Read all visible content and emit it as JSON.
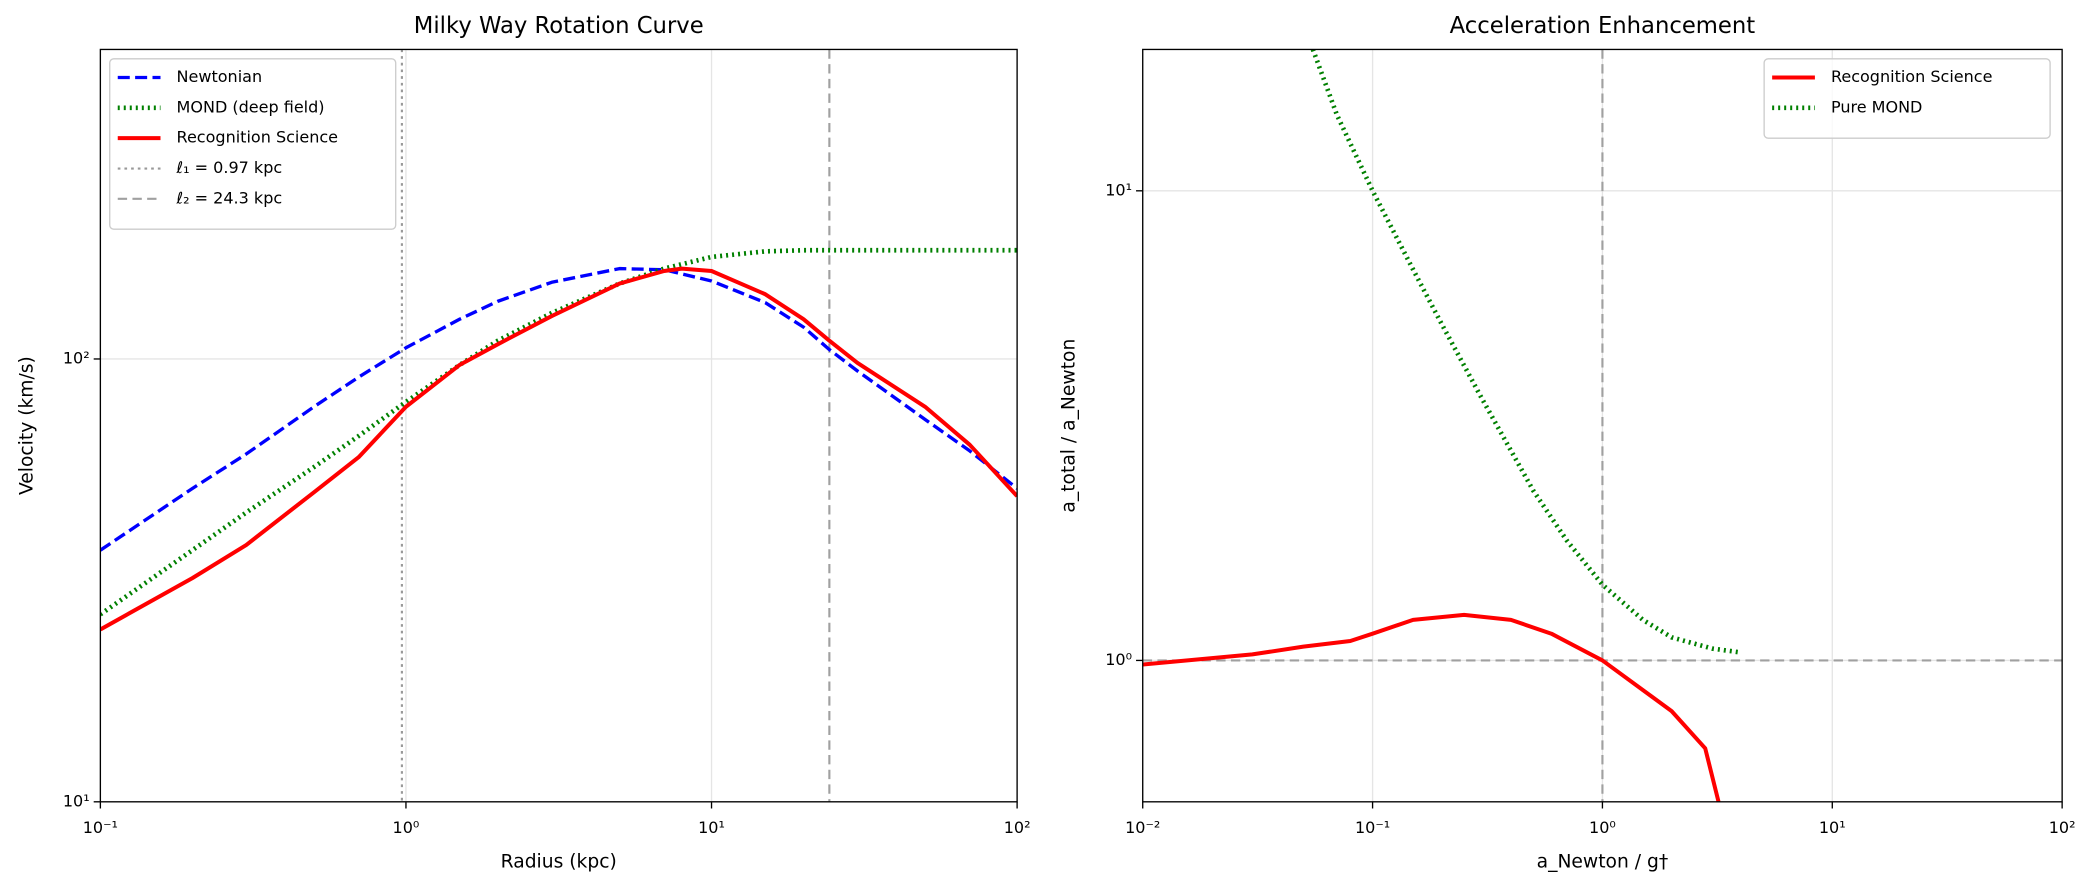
{
  "chart_data": [
    {
      "type": "line",
      "title": "Milky Way Rotation Curve",
      "xlabel": "Radius (kpc)",
      "ylabel": "Velocity (km/s)",
      "xscale": "log",
      "yscale": "log",
      "xlim": [
        0.1,
        100
      ],
      "ylim": [
        10,
        500
      ],
      "xticks": [
        {
          "value": 0.1,
          "label": "10⁻¹"
        },
        {
          "value": 1,
          "label": "10⁰"
        },
        {
          "value": 10,
          "label": "10¹"
        },
        {
          "value": 100,
          "label": "10²"
        }
      ],
      "yticks": [
        {
          "value": 10,
          "label": "10¹"
        },
        {
          "value": 100,
          "label": "10²"
        }
      ],
      "grid": true,
      "legend": "upper left",
      "series": [
        {
          "name": "Newtonian",
          "color": "#0000ff",
          "style": "dashed",
          "x": [
            0.1,
            0.2,
            0.3,
            0.5,
            0.7,
            1,
            1.5,
            2,
            3,
            5,
            7,
            10,
            15,
            20,
            24.3,
            30,
            50,
            70,
            100
          ],
          "values": [
            37,
            51,
            61,
            78,
            91,
            106,
            123,
            135,
            149,
            160,
            159,
            150,
            134,
            118,
            105,
            94,
            73,
            62,
            51
          ]
        },
        {
          "name": "MOND (deep field)",
          "color": "#008000",
          "style": "dotted",
          "x": [
            0.1,
            0.2,
            0.3,
            0.5,
            0.7,
            1,
            1.5,
            2,
            3,
            5,
            7,
            10,
            15,
            20,
            24.3,
            30,
            50,
            70,
            100
          ],
          "values": [
            26.5,
            37,
            45,
            57,
            67,
            80,
            97,
            110,
            127,
            148,
            160,
            170,
            175,
            176,
            176,
            176,
            176,
            176,
            176
          ]
        },
        {
          "name": "Recognition Science",
          "color": "#ff0000",
          "style": "solid",
          "x": [
            0.1,
            0.2,
            0.3,
            0.5,
            0.7,
            1,
            1.5,
            2,
            3,
            5,
            7,
            8,
            10,
            15,
            20,
            24.3,
            30,
            50,
            70,
            100
          ],
          "values": [
            24.5,
            32,
            38,
            50,
            60,
            78,
            97,
            108,
            125,
            148,
            158,
            160,
            158,
            140,
            123,
            110,
            98,
            78,
            64,
            49
          ]
        }
      ],
      "reference_lines": [
        {
          "name": "ℓ₁ = 0.97 kpc",
          "axis": "x",
          "value": 0.97,
          "color": "#999999",
          "style": "dotted"
        },
        {
          "name": "ℓ₂ = 24.3 kpc",
          "axis": "x",
          "value": 24.3,
          "color": "#a0a0a0",
          "style": "dashed"
        }
      ]
    },
    {
      "type": "line",
      "title": "Acceleration Enhancement",
      "xlabel": "a_Newton / g†",
      "ylabel": "a_total / a_Newton",
      "xscale": "log",
      "yscale": "log",
      "xlim": [
        0.01,
        100
      ],
      "ylim": [
        0.5,
        20
      ],
      "xticks": [
        {
          "value": 0.01,
          "label": "10⁻²"
        },
        {
          "value": 0.1,
          "label": "10⁻¹"
        },
        {
          "value": 1,
          "label": "10⁰"
        },
        {
          "value": 10,
          "label": "10¹"
        },
        {
          "value": 100,
          "label": "10²"
        }
      ],
      "yticks": [
        {
          "value": 1,
          "label": "10⁰"
        },
        {
          "value": 10,
          "label": "10¹"
        }
      ],
      "grid": true,
      "legend": "upper right",
      "series": [
        {
          "name": "Recognition Science",
          "color": "#ff0000",
          "style": "solid",
          "x": [
            0.01,
            0.03,
            0.05,
            0.08,
            0.1,
            0.15,
            0.25,
            0.4,
            0.6,
            1,
            2,
            2.8,
            3.2
          ],
          "values": [
            0.98,
            1.03,
            1.07,
            1.1,
            1.14,
            1.22,
            1.25,
            1.22,
            1.14,
            1.0,
            0.78,
            0.65,
            0.5
          ]
        },
        {
          "name": "Pure MOND",
          "color": "#008000",
          "style": "dotted",
          "x": [
            0.055,
            0.07,
            0.1,
            0.15,
            0.2,
            0.3,
            0.5,
            0.7,
            1,
            1.5,
            2,
            3,
            4
          ],
          "values": [
            20,
            14.5,
            10,
            6.8,
            5.2,
            3.6,
            2.3,
            1.8,
            1.45,
            1.22,
            1.12,
            1.06,
            1.04
          ]
        }
      ],
      "reference_lines": [
        {
          "axis": "y",
          "value": 1,
          "color": "#a0a0a0",
          "style": "dashed"
        },
        {
          "axis": "x",
          "value": 1,
          "color": "#a0a0a0",
          "style": "dashed"
        }
      ]
    }
  ]
}
